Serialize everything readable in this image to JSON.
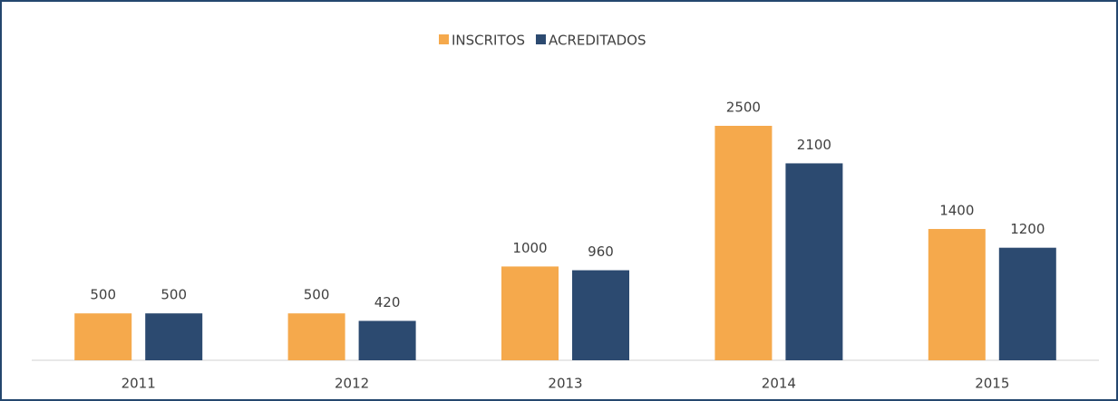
{
  "chart_data": {
    "type": "bar",
    "categories": [
      "2011",
      "2012",
      "2013",
      "2014",
      "2015"
    ],
    "series": [
      {
        "name": "INSCRITOS",
        "color": "#f5a94c",
        "values": [
          500,
          500,
          1000,
          2500,
          1400
        ]
      },
      {
        "name": "ACREDITADOS",
        "color": "#2c4a70",
        "values": [
          500,
          420,
          960,
          2100,
          1200
        ]
      }
    ],
    "legend": "top"
  }
}
